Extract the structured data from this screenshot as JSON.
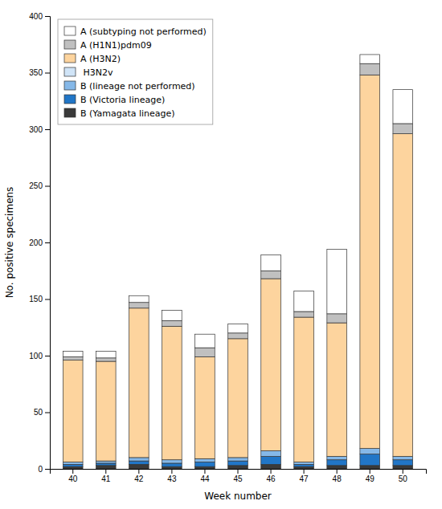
{
  "chart_data": {
    "type": "bar",
    "stacked": true,
    "xlabel": "Week number",
    "ylabel": "No. positive specimens",
    "categories": [
      "40",
      "41",
      "42",
      "43",
      "44",
      "45",
      "46",
      "47",
      "48",
      "49",
      "50"
    ],
    "series": [
      {
        "name": "B (Yamagata lineage)",
        "color": "#3a3a3a",
        "values": [
          2,
          3,
          4,
          2,
          2,
          3,
          4,
          2,
          3,
          3,
          3
        ]
      },
      {
        "name": "B (Victoria lineage)",
        "color": "#2176c7",
        "values": [
          2,
          2,
          3,
          3,
          4,
          4,
          7,
          2,
          5,
          10,
          5
        ]
      },
      {
        "name": "B (lineage not performed)",
        "color": "#85b8e8",
        "values": [
          2,
          2,
          3,
          3,
          3,
          3,
          5,
          2,
          3,
          5,
          3
        ]
      },
      {
        "name": " H3N2v",
        "color": "#d0e4f7",
        "values": [
          0,
          0,
          0,
          0,
          0,
          0,
          0,
          0,
          0,
          0,
          0
        ]
      },
      {
        "name": "A (H3N2)",
        "color": "#fdd49e",
        "values": [
          90,
          88,
          132,
          118,
          90,
          105,
          152,
          128,
          118,
          330,
          285
        ]
      },
      {
        "name": "A (H1N1)pdm09",
        "color": "#c0c0c0",
        "values": [
          3,
          3,
          5,
          5,
          8,
          5,
          7,
          5,
          8,
          10,
          9
        ]
      },
      {
        "name": "A (subtyping not performed)",
        "color": "#ffffff",
        "values": [
          5,
          6,
          6,
          9,
          12,
          8,
          14,
          18,
          57,
          8,
          30
        ]
      }
    ],
    "ylim": [
      0,
      400
    ],
    "yticks": [
      0,
      50,
      100,
      150,
      200,
      250,
      300,
      350,
      400
    ],
    "grid": false,
    "legend": "upper left"
  }
}
